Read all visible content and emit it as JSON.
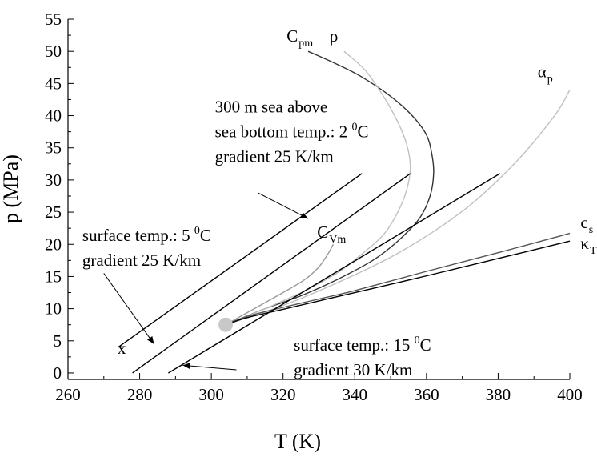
{
  "chart_data": {
    "type": "line",
    "xlabel": "T (K)",
    "ylabel": "p (MPa)",
    "xlim": [
      260,
      400
    ],
    "ylim": [
      -1,
      55
    ],
    "xticks": [
      260,
      280,
      300,
      320,
      340,
      360,
      380,
      400
    ],
    "yticks": [
      0,
      5,
      10,
      15,
      20,
      25,
      30,
      35,
      40,
      45,
      50,
      55
    ],
    "grid": false,
    "ticks_direction": "in",
    "series": [
      {
        "name": "Cpm",
        "color": "#333333",
        "x": [
          304,
          315,
          325,
          335,
          345,
          352,
          358,
          361,
          362,
          361.5,
          360,
          356,
          350,
          342,
          335,
          327
        ],
        "y": [
          7.5,
          10,
          12,
          14.5,
          17.5,
          20.5,
          24,
          27.5,
          31,
          34,
          37,
          40,
          43,
          46,
          48,
          50
        ]
      },
      {
        "name": "ρ",
        "color": "#c0c0c0",
        "x": [
          304,
          315,
          325,
          335,
          342,
          348,
          352,
          354.5,
          355.5,
          354.5,
          352,
          348,
          343,
          337
        ],
        "y": [
          7.5,
          10,
          12.5,
          15.5,
          18.5,
          21.5,
          25,
          28.5,
          32,
          35.5,
          39,
          43,
          47,
          50
        ]
      },
      {
        "name": "αp",
        "color": "#c0c0c0",
        "x": [
          304,
          320,
          335,
          350,
          362,
          372,
          380,
          387,
          393,
          397,
          400
        ],
        "y": [
          7.5,
          10.5,
          14,
          18,
          22,
          26,
          30,
          34,
          38,
          41,
          44
        ]
      },
      {
        "name": "CVm",
        "color": "#999999",
        "x": [
          304,
          312,
          320,
          326,
          330,
          332.5,
          334
        ],
        "y": [
          7.5,
          10,
          12.5,
          14.5,
          16.5,
          18.5,
          20
        ]
      },
      {
        "name": "cs",
        "color": "#555555",
        "x": [
          304,
          310,
          320,
          330,
          340,
          360,
          380,
          400
        ],
        "y": [
          7.5,
          8.8,
          10.2,
          11.5,
          12.8,
          15.8,
          18.7,
          21.7
        ]
      },
      {
        "name": "κT",
        "color": "#000000",
        "x": [
          304,
          310,
          320,
          330,
          340,
          360,
          380,
          400
        ],
        "y": [
          7.5,
          8.6,
          9.9,
          11.2,
          12.5,
          15.1,
          17.8,
          20.5
        ]
      },
      {
        "name": "",
        "color": "#000000",
        "x": [
          274,
          342
        ],
        "y": [
          4,
          31
        ]
      },
      {
        "name": "",
        "color": "#000000",
        "x": [
          278,
          355.5
        ],
        "y": [
          0,
          31
        ]
      },
      {
        "name": "",
        "color": "#000000",
        "x": [
          288,
          380.5
        ],
        "y": [
          0,
          31
        ]
      }
    ],
    "point": {
      "x": 304,
      "y": 7.5,
      "color": "#c8c8c8"
    },
    "series_labels": [
      {
        "base": "C",
        "sub": "pm",
        "x": 321,
        "y": 51.5
      },
      {
        "base": "ρ",
        "sub": "",
        "x": 333,
        "y": 51.5
      },
      {
        "base": "α",
        "sub": "p",
        "x": 391,
        "y": 46
      },
      {
        "base": "C",
        "sub": "Vm",
        "x": 329.5,
        "y": 21
      },
      {
        "base": "c",
        "sub": "s",
        "x": 403,
        "y": 22.5
      },
      {
        "base": "κ",
        "sub": "T",
        "x": 403,
        "y": 19.3
      }
    ],
    "annotations": [
      {
        "lines": [
          [
            "300 m sea above"
          ],
          [
            "sea bottom temp.: 2 ",
            "0",
            "C"
          ],
          [
            "gradient 25 K/km"
          ]
        ],
        "x": 301,
        "y": 40.5
      },
      {
        "lines": [
          [
            "surface temp.: 5 ",
            "0",
            "C"
          ],
          [
            "gradient 25 K/km"
          ]
        ],
        "x": 264,
        "y": 20.5
      },
      {
        "lines": [
          [
            "surface temp.: 15 ",
            "0",
            "C"
          ],
          [
            "gradient 30 K/km"
          ]
        ],
        "x": 323,
        "y": 3.5
      }
    ],
    "arrows": [
      {
        "from": [
          313,
          28
        ],
        "to": [
          327,
          24
        ]
      },
      {
        "from": [
          270,
          15.5
        ],
        "to": [
          284,
          4.5
        ]
      },
      {
        "from": [
          307,
          0.5
        ],
        "to": [
          292,
          1.2
        ]
      }
    ],
    "marker_label": {
      "text": "x",
      "x": 275,
      "y": 3
    }
  }
}
